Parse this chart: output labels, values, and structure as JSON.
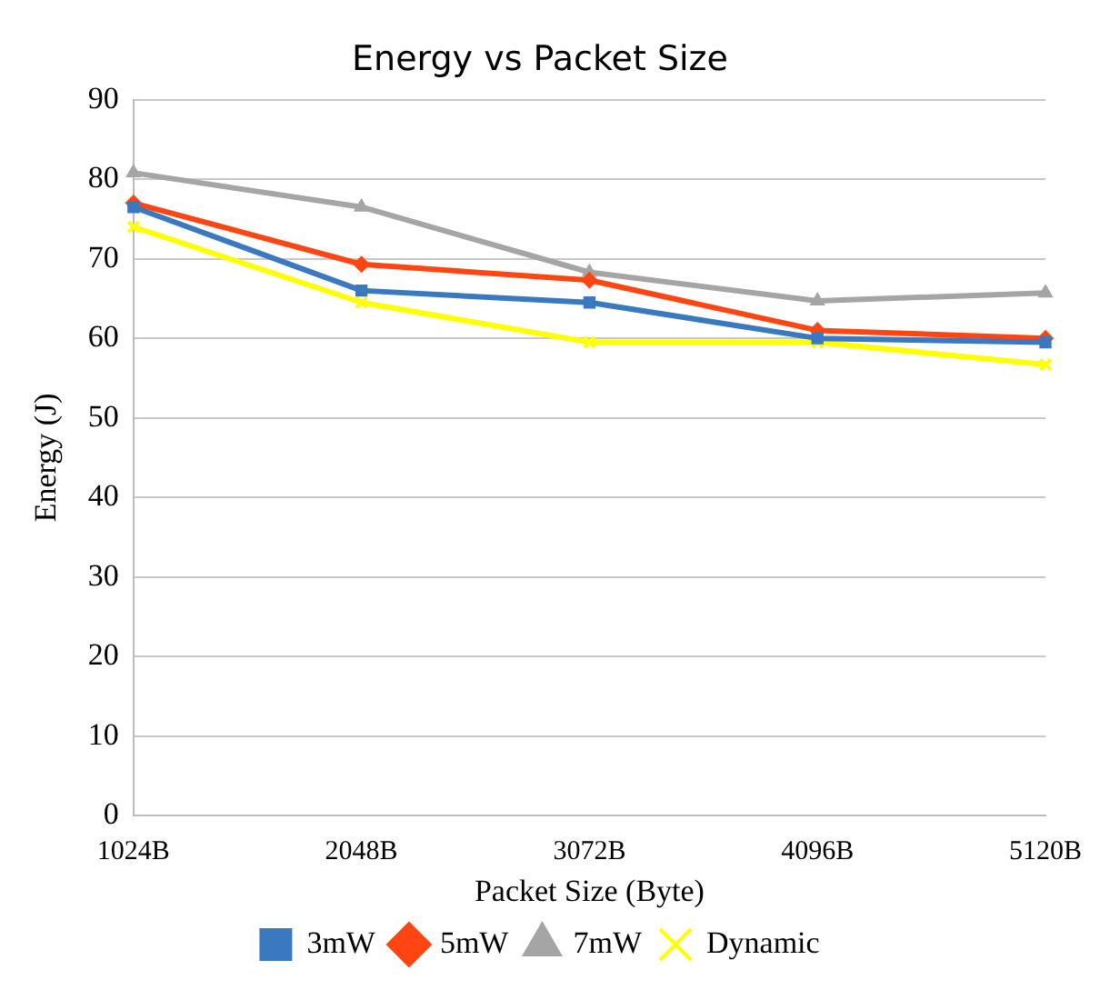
{
  "chart_data": {
    "type": "line",
    "title": "Energy vs Packet Size",
    "xlabel": "Packet Size (Byte)",
    "ylabel": "Energy (J)",
    "categories": [
      "1024B",
      "2048B",
      "3072B",
      "4096B",
      "5120B"
    ],
    "series": [
      {
        "name": "3mW",
        "color": "#3a78c0",
        "marker": "square",
        "values": [
          76.5,
          66,
          64.5,
          60,
          59.5
        ]
      },
      {
        "name": "5mW",
        "color": "#ff4612",
        "marker": "diamond",
        "values": [
          77,
          69.3,
          67.3,
          61,
          60
        ]
      },
      {
        "name": "7mW",
        "color": "#a5a5a5",
        "marker": "triangle",
        "values": [
          80.8,
          76.5,
          68.3,
          64.7,
          65.7
        ]
      },
      {
        "name": "Dynamic",
        "color": "#ffff00",
        "marker": "cross",
        "values": [
          74,
          64.5,
          59.5,
          59.5,
          56.7
        ]
      }
    ],
    "ylim": [
      0,
      90
    ],
    "yticks": [
      0,
      10,
      20,
      30,
      40,
      50,
      60,
      70,
      80,
      90
    ],
    "grid": "y",
    "legend": "bottom"
  }
}
